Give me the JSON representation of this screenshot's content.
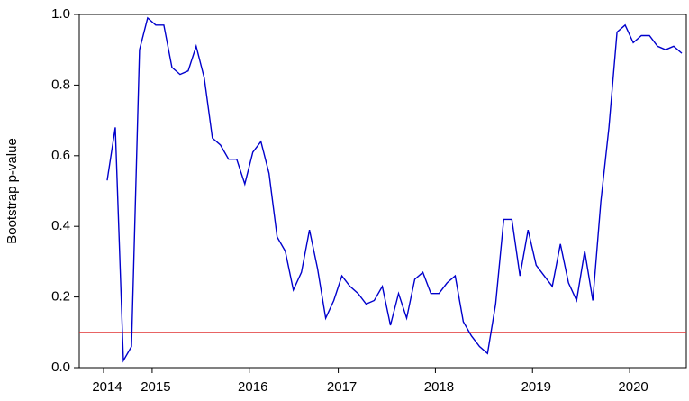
{
  "chart_data": {
    "type": "line",
    "y_label": "Bootstrap p-value",
    "categories": [
      "2014",
      null,
      null,
      null,
      null,
      null,
      "2015",
      null,
      null,
      null,
      null,
      null,
      null,
      null,
      null,
      null,
      null,
      null,
      "2016",
      null,
      null,
      null,
      null,
      null,
      null,
      null,
      null,
      null,
      null,
      "2017",
      null,
      null,
      null,
      null,
      null,
      null,
      null,
      null,
      null,
      null,
      null,
      "2018",
      null,
      null,
      null,
      null,
      null,
      null,
      null,
      null,
      null,
      null,
      null,
      "2019",
      null,
      null,
      null,
      null,
      null,
      null,
      null,
      null,
      null,
      null,
      null,
      "2020",
      null,
      null,
      null,
      null,
      null,
      null
    ],
    "series": [
      {
        "color": "#0000cc",
        "values": [
          0.53,
          0.68,
          0.02,
          0.06,
          0.9,
          0.99,
          0.97,
          0.97,
          0.85,
          0.83,
          0.84,
          0.91,
          0.82,
          0.65,
          0.63,
          0.59,
          0.59,
          0.52,
          0.61,
          0.64,
          0.55,
          0.37,
          0.33,
          0.22,
          0.27,
          0.39,
          0.28,
          0.14,
          0.19,
          0.26,
          0.23,
          0.21,
          0.18,
          0.19,
          0.23,
          0.12,
          0.21,
          0.14,
          0.25,
          0.27,
          0.21,
          0.21,
          0.24,
          0.26,
          0.13,
          0.09,
          0.06,
          0.04,
          0.18,
          0.42,
          0.42,
          0.26,
          0.39,
          0.29,
          0.26,
          0.23,
          0.35,
          0.24,
          0.19,
          0.33,
          0.19,
          0.47,
          0.68,
          0.95,
          0.97,
          0.92,
          0.94,
          0.94,
          0.91,
          0.9,
          0.91,
          0.89
        ]
      }
    ],
    "reference_line": {
      "value": 0.1,
      "color": "#e03030"
    },
    "ylim": [
      0,
      1
    ],
    "yticks": [
      {
        "value": 0,
        "label": "0.0"
      },
      0.2,
      0.4,
      0.6,
      0.8,
      {
        "value": 1,
        "label": "1.0"
      }
    ],
    "grid": false
  }
}
